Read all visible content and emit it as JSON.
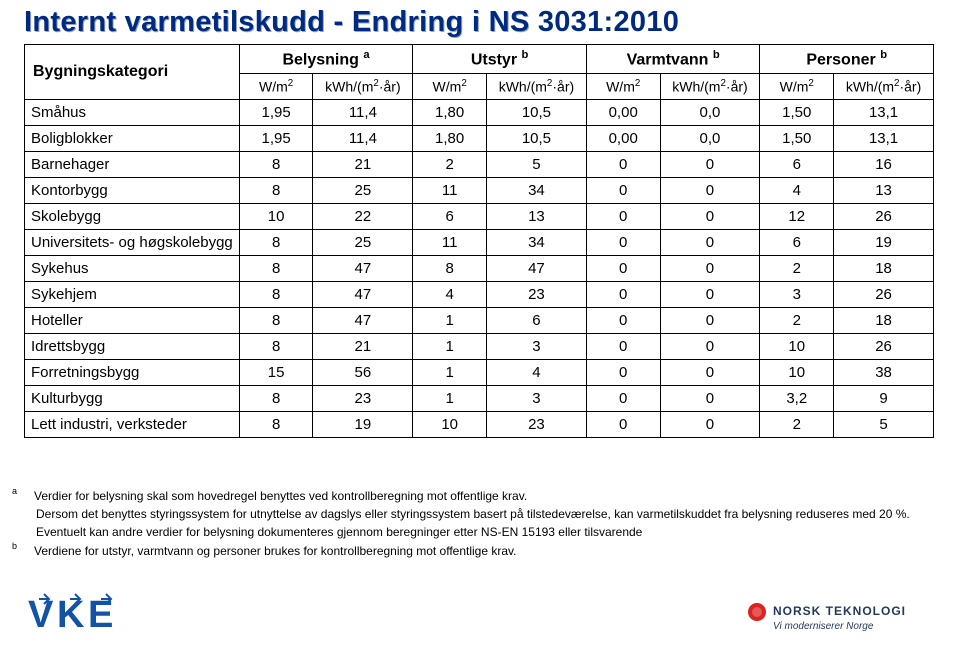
{
  "title": "Internt varmetilskudd - Endring i NS 3031:2010",
  "columns": {
    "cat": "Bygningskategori",
    "groups": [
      {
        "label": "Belysning",
        "note": "a"
      },
      {
        "label": "Utstyr",
        "note": "b"
      },
      {
        "label": "Varmtvann",
        "note": "b"
      },
      {
        "label": "Personer",
        "note": "b"
      }
    ],
    "units": {
      "w": "W/m",
      "kwh_pre": "kWh/(m",
      "kwh_post": "·år)"
    }
  },
  "rows": [
    {
      "cat": "Småhus",
      "v": [
        "1,95",
        "11,4",
        "1,80",
        "10,5",
        "0,00",
        "0,0",
        "1,50",
        "13,1"
      ]
    },
    {
      "cat": "Boligblokker",
      "v": [
        "1,95",
        "11,4",
        "1,80",
        "10,5",
        "0,00",
        "0,0",
        "1,50",
        "13,1"
      ]
    },
    {
      "cat": "Barnehager",
      "v": [
        "8",
        "21",
        "2",
        "5",
        "0",
        "0",
        "6",
        "16"
      ]
    },
    {
      "cat": "Kontorbygg",
      "v": [
        "8",
        "25",
        "11",
        "34",
        "0",
        "0",
        "4",
        "13"
      ]
    },
    {
      "cat": "Skolebygg",
      "v": [
        "10",
        "22",
        "6",
        "13",
        "0",
        "0",
        "12",
        "26"
      ]
    },
    {
      "cat": "Universitets- og høgskolebygg",
      "v": [
        "8",
        "25",
        "11",
        "34",
        "0",
        "0",
        "6",
        "19"
      ]
    },
    {
      "cat": "Sykehus",
      "v": [
        "8",
        "47",
        "8",
        "47",
        "0",
        "0",
        "2",
        "18"
      ]
    },
    {
      "cat": "Sykehjem",
      "v": [
        "8",
        "47",
        "4",
        "23",
        "0",
        "0",
        "3",
        "26"
      ]
    },
    {
      "cat": "Hoteller",
      "v": [
        "8",
        "47",
        "1",
        "6",
        "0",
        "0",
        "2",
        "18"
      ]
    },
    {
      "cat": "Idrettsbygg",
      "v": [
        "8",
        "21",
        "1",
        "3",
        "0",
        "0",
        "10",
        "26"
      ]
    },
    {
      "cat": "Forretningsbygg",
      "v": [
        "15",
        "56",
        "1",
        "4",
        "0",
        "0",
        "10",
        "38"
      ]
    },
    {
      "cat": "Kulturbygg",
      "v": [
        "8",
        "23",
        "1",
        "3",
        "0",
        "0",
        "3,2",
        "9"
      ]
    },
    {
      "cat": "Lett industri, verksteder",
      "v": [
        "8",
        "19",
        "10",
        "23",
        "0",
        "0",
        "2",
        "5"
      ]
    }
  ],
  "footnotes": {
    "a_line1": "Verdier for belysning skal som hovedregel benyttes ved kontrollberegning mot offentlige krav.",
    "a_line2": "Dersom det benyttes styringssystem for utnyttelse av dagslys eller styringssystem basert på tilstedeværelse, kan varmetilskuddet fra belysning reduseres med 20 %.",
    "a_line3": "Eventuelt kan andre verdier for belysning dokumenteres gjennom beregninger etter NS-EN 15193 eller tilsvarende",
    "b": "Verdiene for utstyr, varmtvann og personer brukes for kontrollberegning mot offentlige krav."
  },
  "logos": {
    "vke_color": "#1253a4",
    "nt_text": "NORSK TEKNOLOGI",
    "nt_sub": "Vi moderniserer Norge",
    "nt_color": "#25395e"
  }
}
